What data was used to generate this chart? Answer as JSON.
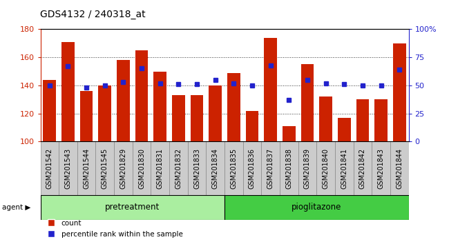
{
  "title": "GDS4132 / 240318_at",
  "samples": [
    "GSM201542",
    "GSM201543",
    "GSM201544",
    "GSM201545",
    "GSM201829",
    "GSM201830",
    "GSM201831",
    "GSM201832",
    "GSM201833",
    "GSM201834",
    "GSM201835",
    "GSM201836",
    "GSM201837",
    "GSM201838",
    "GSM201839",
    "GSM201840",
    "GSM201841",
    "GSM201842",
    "GSM201843",
    "GSM201844"
  ],
  "count_vals": [
    144,
    171,
    136,
    140,
    158,
    165,
    150,
    133,
    133,
    140,
    149,
    122,
    174,
    111,
    155,
    132,
    117,
    130,
    130,
    170
  ],
  "pct_vals": [
    50,
    67,
    48,
    50,
    53,
    65,
    52,
    51,
    51,
    55,
    52,
    50,
    68,
    37,
    55,
    52,
    51,
    50,
    50,
    64
  ],
  "bar_color": "#cc2200",
  "dot_color": "#2222cc",
  "ylim_left": [
    100,
    180
  ],
  "ylim_right": [
    0,
    100
  ],
  "yticks_left": [
    100,
    120,
    140,
    160,
    180
  ],
  "yticks_right": [
    0,
    25,
    50,
    75,
    100
  ],
  "ytick_labels_right": [
    "0",
    "25",
    "50",
    "75",
    "100%"
  ],
  "group1_label": "pretreatment",
  "group2_label": "pioglitazone",
  "group1_color": "#aaeea0",
  "group2_color": "#44cc44",
  "group1_n": 10,
  "group2_n": 10,
  "agent_label": "agent",
  "legend_count": "count",
  "legend_pct": "percentile rank within the sample",
  "bar_width": 0.7,
  "grid_linestyle": "dotted",
  "title_fontsize": 10,
  "label_fontsize": 7,
  "tick_fontsize": 8,
  "axis_color_left": "#cc2200",
  "axis_color_right": "#2222cc",
  "xticklabel_bg": "#cccccc",
  "xticklabel_border": "#888888"
}
